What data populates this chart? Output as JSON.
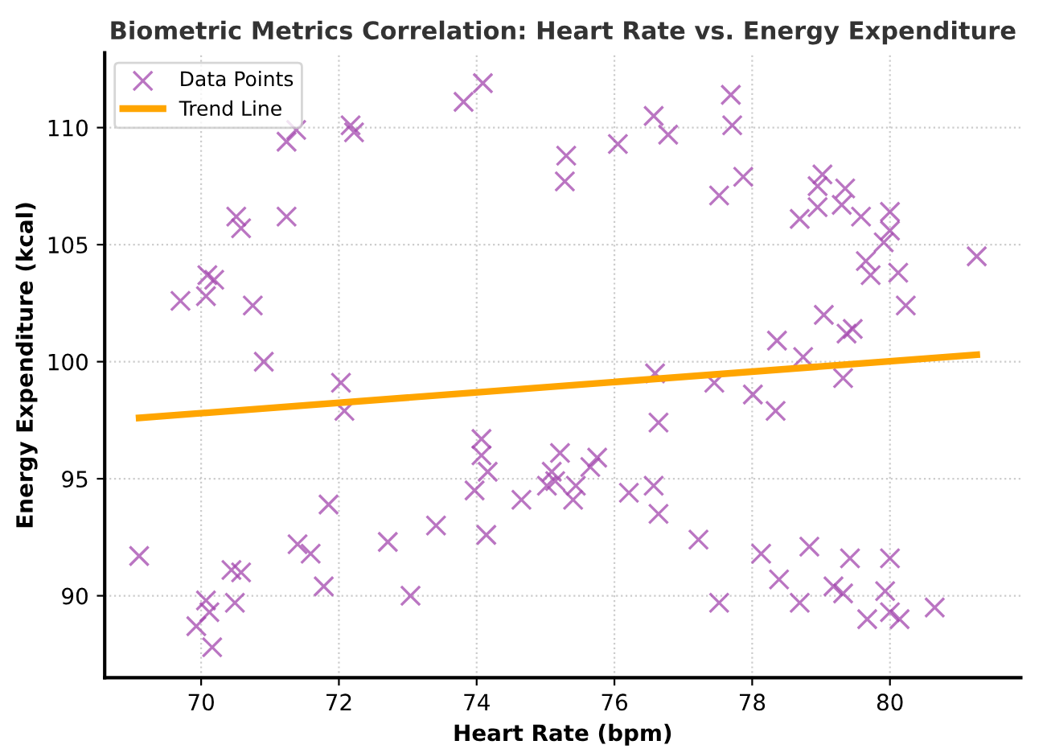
{
  "chart_data": {
    "type": "scatter",
    "title": "Biometric Metrics Correlation: Heart Rate vs. Energy Expenditure",
    "xlabel": "Heart Rate (bpm)",
    "ylabel": "Energy Expenditure (kcal)",
    "xlim": [
      68.6,
      81.9
    ],
    "ylim": [
      86.5,
      113.2
    ],
    "xticks": [
      70,
      72,
      74,
      76,
      78,
      80
    ],
    "yticks": [
      90,
      95,
      100,
      105,
      110
    ],
    "grid": true,
    "legend": "top left",
    "series": [
      {
        "name": "Data Points",
        "marker": "cross",
        "color": "#a347ad",
        "x": [
          69.1,
          69.7,
          70.07,
          70.09,
          70.19,
          70.75,
          70.91,
          70.51,
          70.58,
          71.24,
          71.24,
          71.38,
          72.17,
          72.22,
          72.03,
          72.08,
          71.85,
          72.71,
          73.04,
          71.4,
          71.59,
          71.78,
          70.44,
          70.58,
          70.49,
          70.07,
          70.12,
          69.93,
          70.16,
          73.81,
          74.09,
          75.3,
          75.28,
          76.05,
          76.57,
          76.78,
          76.59,
          76.64,
          74.07,
          74.07,
          74.16,
          73.97,
          74.14,
          74.65,
          75.21,
          75.09,
          75.02,
          75.14,
          75.44,
          75.4,
          75.65,
          75.75,
          76.21,
          76.57,
          76.64,
          77.22,
          73.41,
          77.69,
          77.71,
          77.87,
          77.52,
          78.69,
          78.95,
          79.02,
          78.95,
          79.3,
          79.35,
          79.58,
          80.0,
          80.0,
          79.91,
          79.65,
          79.72,
          80.12,
          80.23,
          81.26,
          79.04,
          78.36,
          79.37,
          79.46,
          78.74,
          77.45,
          78.01,
          78.34,
          79.32,
          77.52,
          78.13,
          78.39,
          78.69,
          78.83,
          79.18,
          79.32,
          79.42,
          80.0,
          79.93,
          79.67,
          80.0,
          80.14,
          80.65
        ],
        "values": [
          91.7,
          102.6,
          102.8,
          103.7,
          103.5,
          102.4,
          100.0,
          106.2,
          105.7,
          106.2,
          109.4,
          109.9,
          110.1,
          109.8,
          99.1,
          97.9,
          93.9,
          92.3,
          90.0,
          92.2,
          91.8,
          90.4,
          91.1,
          91.0,
          89.7,
          89.8,
          89.3,
          88.7,
          87.8,
          111.1,
          111.9,
          108.8,
          107.7,
          109.3,
          110.5,
          109.7,
          99.5,
          97.4,
          96.7,
          96.0,
          95.3,
          94.5,
          92.6,
          94.1,
          96.1,
          95.3,
          94.7,
          94.9,
          94.7,
          94.1,
          95.5,
          95.9,
          94.4,
          94.7,
          93.5,
          92.4,
          93.0,
          111.4,
          110.1,
          107.9,
          107.1,
          106.1,
          107.5,
          108.0,
          106.6,
          106.7,
          107.4,
          106.2,
          106.4,
          105.6,
          105.1,
          104.3,
          103.7,
          103.8,
          102.4,
          104.5,
          102.0,
          100.9,
          101.2,
          101.4,
          100.2,
          99.1,
          98.6,
          97.9,
          99.3,
          89.7,
          91.8,
          90.7,
          89.7,
          92.1,
          90.4,
          90.1,
          91.6,
          91.6,
          90.2,
          89.0,
          89.3,
          89.0,
          89.5
        ]
      },
      {
        "name": "Trend Line",
        "type": "line",
        "marker": "none",
        "line_style": "solid",
        "color": "#ffa500",
        "x": [
          69.1,
          81.26
        ],
        "values": [
          97.6,
          100.3
        ]
      }
    ]
  }
}
